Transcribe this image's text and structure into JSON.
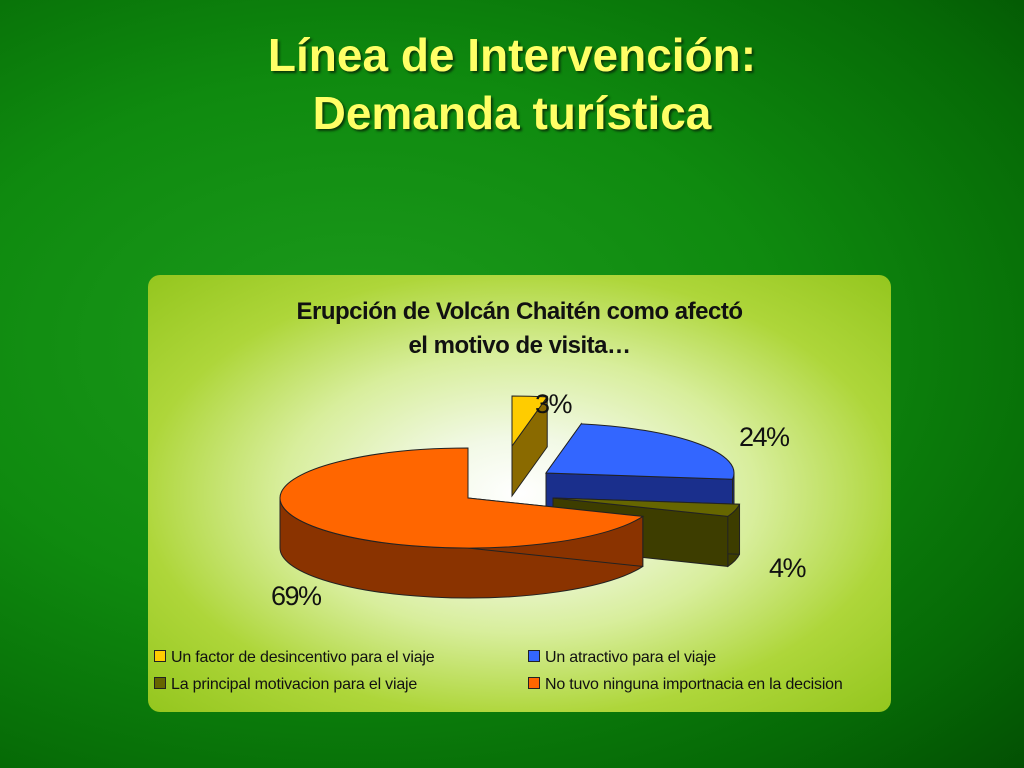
{
  "slide": {
    "title_line1": "Línea de Intervención:",
    "title_line2": "Demanda turística"
  },
  "chart_data": {
    "type": "pie",
    "title": "Erupción de Volcán Chaitén como afectó el motivo de visita…",
    "title_line1": "Erupción de Volcán Chaitén como afectó",
    "title_line2": "el motivo de visita…",
    "slices": [
      {
        "label": "Un factor de desincentivo para el viaje",
        "value": 3,
        "display": "3%",
        "color": "#ffcc00",
        "side_color": "#8a6a00"
      },
      {
        "label": "Un atractivo para el viaje",
        "value": 24,
        "display": "24%",
        "color": "#3366ff",
        "side_color": "#1a2f8c"
      },
      {
        "label": "La principal motivacion para el viaje",
        "value": 4,
        "display": "4%",
        "color": "#666600",
        "side_color": "#3d3d00"
      },
      {
        "label": "No tuvo ninguna importnacia en la decision",
        "value": 69,
        "display": "69%",
        "color": "#ff6600",
        "side_color": "#8a3300"
      }
    ],
    "exploded": true,
    "style": "3d",
    "legend_position": "bottom"
  }
}
